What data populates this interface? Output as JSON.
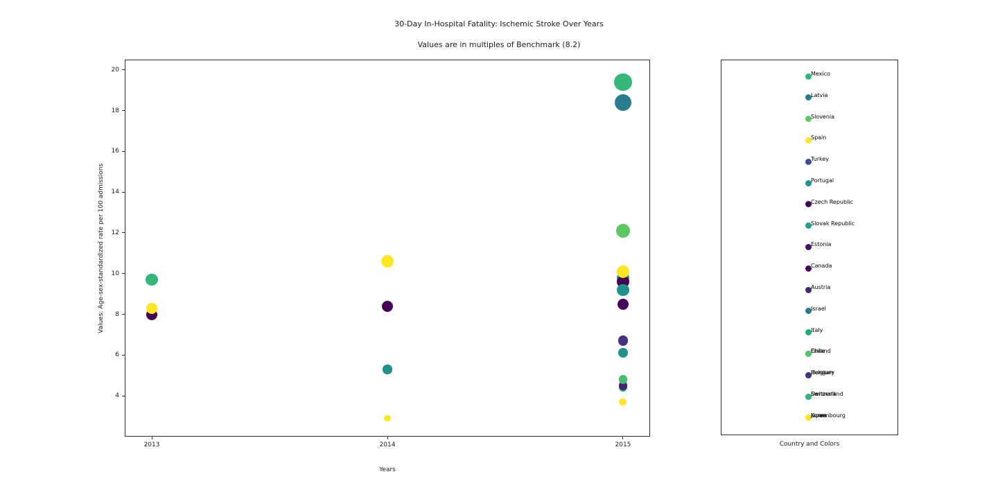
{
  "figure": {
    "title_line1": "30-Day In-Hospital Fatality: Ischemic Stroke Over Years",
    "title_line2": "Values are in multiples of Benchmark (8.2)"
  },
  "chart_data": {
    "type": "scatter",
    "title": "30-Day In-Hospital Fatality: Ischemic Stroke Over Years",
    "subtitle": "Values are in multiples of Benchmark (8.2)",
    "xlabel": "Years",
    "ylabel": "Values: Age-sex-standardized rate per 100 admissions",
    "benchmark": 8.2,
    "size_encoding": "marker area scales with value (multiples of benchmark 8.2)",
    "x_ticks": [
      "2013",
      "2014",
      "2015"
    ],
    "y_ticks": [
      4,
      6,
      8,
      10,
      12,
      14,
      16,
      18,
      20
    ],
    "ylim": [
      2.0,
      20.5
    ],
    "grid": false,
    "points": [
      {
        "year": 2013,
        "value": 8.0,
        "color": "#440154"
      },
      {
        "year": 2013,
        "value": 8.3,
        "color": "#fde725"
      },
      {
        "year": 2013,
        "value": 9.7,
        "color": "#35b779"
      },
      {
        "year": 2014,
        "value": 10.6,
        "color": "#fde725"
      },
      {
        "year": 2014,
        "value": 8.4,
        "color": "#440154"
      },
      {
        "year": 2014,
        "value": 5.3,
        "color": "#21918c"
      },
      {
        "year": 2014,
        "value": 2.9,
        "color": "#fde725"
      },
      {
        "year": 2015,
        "value": 19.4,
        "color": "#35b779"
      },
      {
        "year": 2015,
        "value": 18.4,
        "color": "#287d8e"
      },
      {
        "year": 2015,
        "value": 12.1,
        "color": "#5ec962"
      },
      {
        "year": 2015,
        "value": 9.8,
        "color": "#21918c"
      },
      {
        "year": 2015,
        "value": 9.6,
        "color": "#440154"
      },
      {
        "year": 2015,
        "value": 9.2,
        "color": "#21918c"
      },
      {
        "year": 2015,
        "value": 10.1,
        "color": "#fde725"
      },
      {
        "year": 2015,
        "value": 8.5,
        "color": "#46085c"
      },
      {
        "year": 2015,
        "value": 6.7,
        "color": "#46327e"
      },
      {
        "year": 2015,
        "value": 6.1,
        "color": "#21918c"
      },
      {
        "year": 2015,
        "value": 4.4,
        "color": "#22a884"
      },
      {
        "year": 2015,
        "value": 4.5,
        "color": "#482475"
      },
      {
        "year": 2015,
        "value": 4.8,
        "color": "#44bf70"
      },
      {
        "year": 2015,
        "value": 3.7,
        "color": "#fde725"
      }
    ]
  },
  "legend": {
    "caption": "Country and Colors",
    "entries": [
      {
        "labels": [
          "Mexico"
        ],
        "colors": [
          "#35b779"
        ]
      },
      {
        "labels": [
          "Latvia"
        ],
        "colors": [
          "#287d8e"
        ]
      },
      {
        "labels": [
          "Slovenia"
        ],
        "colors": [
          "#5ec962"
        ]
      },
      {
        "labels": [
          "Spain"
        ],
        "colors": [
          "#fde725"
        ]
      },
      {
        "labels": [
          "Turkey"
        ],
        "colors": [
          "#3b518b"
        ]
      },
      {
        "labels": [
          "Portugal"
        ],
        "colors": [
          "#21918c"
        ]
      },
      {
        "labels": [
          "Czech Republic"
        ],
        "colors": [
          "#440154"
        ]
      },
      {
        "labels": [
          "Slovak Republic"
        ],
        "colors": [
          "#1fa187"
        ]
      },
      {
        "labels": [
          "Estonia"
        ],
        "colors": [
          "#471164"
        ]
      },
      {
        "labels": [
          "Canada"
        ],
        "colors": [
          "#46085c"
        ]
      },
      {
        "labels": [
          "Austria"
        ],
        "colors": [
          "#482475"
        ]
      },
      {
        "labels": [
          "Israel"
        ],
        "colors": [
          "#2a788e"
        ]
      },
      {
        "labels": [
          "Italy"
        ],
        "colors": [
          "#22a884"
        ]
      },
      {
        "labels": [
          "Chile",
          "Finland"
        ],
        "colors": [
          "#44bf70",
          "#52c569"
        ]
      },
      {
        "labels": [
          "Belgium",
          "Hungary"
        ],
        "colors": [
          "#3e4989",
          "#46327e"
        ]
      },
      {
        "labels": [
          "Denmark",
          "Switzerland"
        ],
        "colors": [
          "#2db27d",
          "#31b57b"
        ]
      },
      {
        "labels": [
          "Japan",
          "Korea",
          "Luxembourg"
        ],
        "colors": [
          "#e5e419",
          "#f6e620",
          "#fde725"
        ]
      }
    ]
  }
}
